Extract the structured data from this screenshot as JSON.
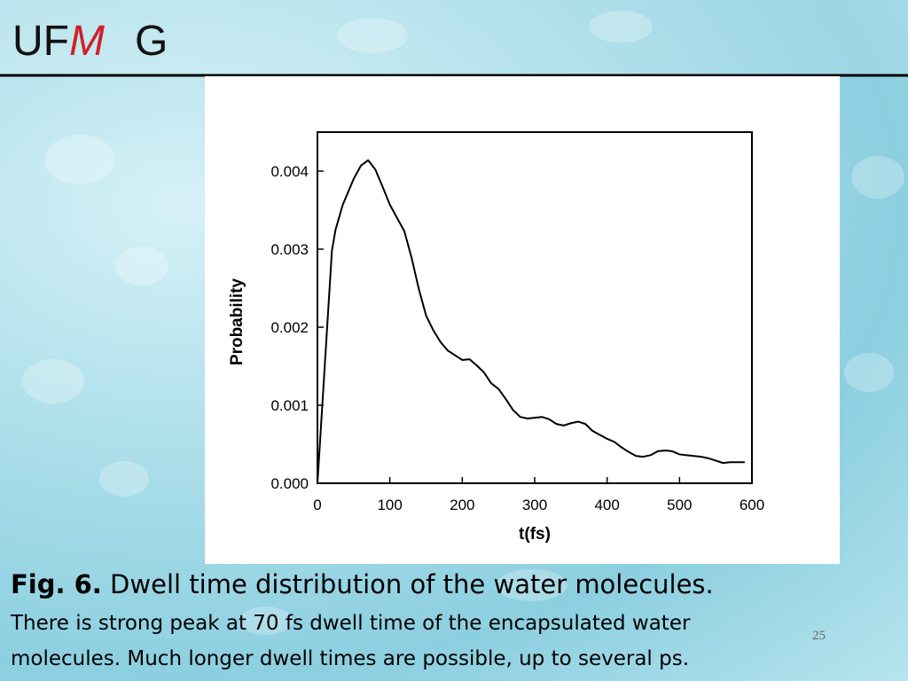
{
  "logo": [
    "UF",
    "M",
    "G"
  ],
  "chart_data": {
    "type": "line",
    "x_label": "t(fs)",
    "y_label": "Probability",
    "x": [
      0,
      20,
      25,
      35,
      50,
      60,
      70,
      80,
      90,
      100,
      110,
      120,
      130,
      140,
      150,
      160,
      170,
      180,
      190,
      200,
      210,
      220,
      230,
      240,
      250,
      260,
      270,
      280,
      290,
      300,
      310,
      320,
      330,
      340,
      350,
      360,
      370,
      380,
      390,
      400,
      410,
      420,
      430,
      440,
      450,
      460,
      470,
      480,
      490,
      500,
      510,
      520,
      530,
      540,
      550,
      560,
      570,
      580,
      590
    ],
    "series": [
      {
        "color": "#000000",
        "values": [
          0,
          0.00298,
          0.00325,
          0.00357,
          0.0039,
          0.00407,
          0.00414,
          0.00402,
          0.0038,
          0.00357,
          0.0034,
          0.00323,
          0.00289,
          0.00249,
          0.00215,
          0.00196,
          0.00181,
          0.0017,
          0.00164,
          0.00158,
          0.00159,
          0.00151,
          0.00142,
          0.00128,
          0.00121,
          0.00108,
          0.00094,
          0.00085,
          0.00083,
          0.00084,
          0.00085,
          0.00082,
          0.00076,
          0.00074,
          0.00077,
          0.00079,
          0.00076,
          0.00067,
          0.00062,
          0.00057,
          0.00053,
          0.00046,
          0.0004,
          0.00035,
          0.00034,
          0.00036,
          0.00041,
          0.00042,
          0.00041,
          0.00037,
          0.00036,
          0.00035,
          0.00034,
          0.00032,
          0.00029,
          0.00026,
          0.00027,
          0.00027,
          0.00027
        ]
      }
    ],
    "xlim": [
      0,
      600
    ],
    "xticks": [
      0,
      100,
      200,
      300,
      400,
      500,
      600
    ],
    "ylim": [
      0,
      0.0045
    ],
    "yticks": [
      {
        "value": 0,
        "label": "0.000"
      },
      {
        "value": 0.001,
        "label": "0.001"
      },
      {
        "value": 0.002,
        "label": "0.002"
      },
      {
        "value": 0.003,
        "label": "0.003"
      },
      {
        "value": 0.004,
        "label": "0.004"
      }
    ]
  },
  "caption": {
    "fig": "Fig. 6.",
    "title": "Dwell time distribution of the water molecules.",
    "lines": [
      "There is strong peak at 70 fs dwell time of the encapsulated water",
      "molecules. Much longer dwell times are possible, up to several ps."
    ]
  },
  "page_number": "25"
}
